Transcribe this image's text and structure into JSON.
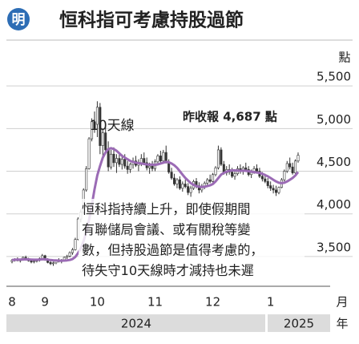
{
  "logo": "明",
  "chart_data": {
    "type": "candlestick",
    "title": "恒科指可考慮持股過節",
    "y_unit": "點",
    "x_unit": "月",
    "year_unit": "年",
    "years": [
      "2024",
      "2025"
    ],
    "annotation": "昨收報 4,687 點",
    "note": [
      "恒科指持續上升，即使假期間",
      "有聯儲局會議、或有關稅等變",
      "數，但持股過節是值得考慮的，",
      "待失守10天線時才減持也未遲"
    ],
    "categories": [
      "8",
      null,
      null,
      null,
      null,
      null,
      null,
      null,
      null,
      null,
      null,
      null,
      "9",
      null,
      null,
      null,
      null,
      null,
      null,
      null,
      null,
      null,
      null,
      null,
      null,
      null,
      null,
      null,
      null,
      null,
      null,
      "10",
      null,
      null,
      null,
      null,
      null,
      null,
      null,
      null,
      null,
      null,
      null,
      null,
      null,
      null,
      null,
      null,
      null,
      null,
      null,
      null,
      "11",
      null,
      null,
      null,
      null,
      null,
      null,
      null,
      null,
      null,
      null,
      null,
      null,
      null,
      null,
      null,
      null,
      null,
      null,
      null,
      null,
      "12",
      null,
      null,
      null,
      null,
      null,
      null,
      null,
      null,
      null,
      null,
      null,
      null,
      null,
      null,
      null,
      null,
      null,
      null,
      null,
      null,
      "1",
      null,
      null,
      null,
      null,
      null,
      null,
      null,
      null,
      null,
      null
    ],
    "open": [
      3440,
      3455,
      3470,
      3450,
      3465,
      3490,
      3470,
      3450,
      3435,
      3445,
      3460,
      3475,
      3510,
      3460,
      3430,
      3415,
      3425,
      3450,
      3440,
      3460,
      3490,
      3505,
      3545,
      3580,
      3700,
      3940,
      4020,
      4280,
      4530,
      4880,
      5080,
      5050,
      5250,
      4800,
      4950,
      4750,
      4550,
      4700,
      4600,
      4650,
      4580,
      4640,
      4560,
      4520,
      4580,
      4620,
      4570,
      4600,
      4650,
      4600,
      4540,
      4560,
      4530,
      4610,
      4680,
      4620,
      4720,
      4600,
      4490,
      4420,
      4350,
      4400,
      4300,
      4350,
      4320,
      4250,
      4300,
      4380,
      4330,
      4280,
      4320,
      4360,
      4400,
      4380,
      4460,
      4540,
      4750,
      4580,
      4480,
      4520,
      4490,
      4440,
      4470,
      4530,
      4500,
      4540,
      4520,
      4460,
      4500,
      4530,
      4500,
      4440,
      4410,
      4380,
      4330,
      4300,
      4280,
      4250,
      4310,
      4400,
      4500,
      4590,
      4550,
      4480,
      4620
    ],
    "high": [
      3470,
      3480,
      3490,
      3475,
      3500,
      3510,
      3485,
      3470,
      3460,
      3475,
      3490,
      3530,
      3520,
      3480,
      3450,
      3440,
      3460,
      3480,
      3470,
      3500,
      3520,
      3560,
      3600,
      3720,
      3960,
      4050,
      4300,
      4560,
      4900,
      5120,
      5200,
      5320,
      5300,
      5000,
      5050,
      4850,
      4750,
      4780,
      4700,
      4720,
      4680,
      4700,
      4620,
      4600,
      4660,
      4680,
      4640,
      4700,
      4720,
      4660,
      4600,
      4620,
      4640,
      4700,
      4740,
      4750,
      4800,
      4640,
      4540,
      4470,
      4420,
      4440,
      4380,
      4400,
      4360,
      4330,
      4400,
      4420,
      4370,
      4350,
      4380,
      4420,
      4460,
      4480,
      4560,
      4800,
      4780,
      4620,
      4560,
      4580,
      4540,
      4500,
      4560,
      4580,
      4560,
      4600,
      4560,
      4520,
      4560,
      4580,
      4540,
      4490,
      4470,
      4420,
      4380,
      4340,
      4330,
      4320,
      4420,
      4520,
      4620,
      4660,
      4600,
      4640,
      4720
    ],
    "low": [
      3420,
      3440,
      3445,
      3430,
      3450,
      3460,
      3440,
      3420,
      3420,
      3430,
      3440,
      3460,
      3450,
      3420,
      3400,
      3390,
      3410,
      3430,
      3420,
      3440,
      3470,
      3490,
      3520,
      3570,
      3690,
      3900,
      4000,
      4260,
      4520,
      4850,
      4950,
      4900,
      4700,
      4650,
      4700,
      4500,
      4520,
      4550,
      4480,
      4550,
      4520,
      4530,
      4470,
      4480,
      4530,
      4550,
      4500,
      4560,
      4580,
      4510,
      4470,
      4500,
      4500,
      4570,
      4600,
      4600,
      4590,
      4470,
      4400,
      4330,
      4300,
      4280,
      4260,
      4300,
      4220,
      4200,
      4280,
      4300,
      4240,
      4250,
      4290,
      4330,
      4360,
      4370,
      4440,
      4520,
      4560,
      4460,
      4450,
      4460,
      4420,
      4400,
      4450,
      4470,
      4460,
      4500,
      4440,
      4420,
      4470,
      4480,
      4420,
      4380,
      4360,
      4300,
      4270,
      4240,
      4210,
      4230,
      4300,
      4380,
      4480,
      4520,
      4460,
      4470,
      4600
    ],
    "close": [
      3455,
      3470,
      3450,
      3465,
      3490,
      3470,
      3450,
      3435,
      3445,
      3460,
      3475,
      3510,
      3460,
      3430,
      3415,
      3425,
      3450,
      3440,
      3460,
      3490,
      3505,
      3545,
      3580,
      3700,
      3940,
      4020,
      4280,
      4530,
      4880,
      5080,
      5000,
      5250,
      4800,
      4950,
      4750,
      4550,
      4700,
      4600,
      4650,
      4580,
      4640,
      4560,
      4520,
      4580,
      4620,
      4570,
      4600,
      4650,
      4600,
      4540,
      4560,
      4530,
      4610,
      4680,
      4620,
      4720,
      4600,
      4490,
      4420,
      4350,
      4400,
      4300,
      4350,
      4320,
      4250,
      4300,
      4380,
      4330,
      4280,
      4320,
      4360,
      4400,
      4380,
      4460,
      4540,
      4750,
      4580,
      4480,
      4520,
      4490,
      4440,
      4470,
      4530,
      4500,
      4540,
      4520,
      4460,
      4500,
      4530,
      4500,
      4440,
      4410,
      4380,
      4330,
      4300,
      4280,
      4250,
      4310,
      4400,
      4500,
      4590,
      4550,
      4480,
      4620,
      4687
    ],
    "up_color": "#ffffff",
    "down_color": "#333333",
    "series": [
      {
        "name": "10天線",
        "color": "#9b6bb5",
        "values": [
          3460,
          3462,
          3463,
          3464,
          3466,
          3467,
          3466,
          3464,
          3462,
          3462,
          3464,
          3468,
          3467,
          3463,
          3459,
          3456,
          3454,
          3452,
          3451,
          3452,
          3455,
          3460,
          3470,
          3495,
          3540,
          3595,
          3680,
          3790,
          3930,
          4100,
          4290,
          4450,
          4560,
          4660,
          4720,
          4760,
          4770,
          4760,
          4740,
          4710,
          4680,
          4660,
          4640,
          4620,
          4610,
          4600,
          4595,
          4590,
          4585,
          4580,
          4578,
          4576,
          4575,
          4580,
          4590,
          4600,
          4610,
          4605,
          4590,
          4570,
          4540,
          4500,
          4460,
          4420,
          4390,
          4360,
          4340,
          4325,
          4318,
          4315,
          4318,
          4325,
          4335,
          4350,
          4380,
          4420,
          4460,
          4480,
          4495,
          4505,
          4510,
          4510,
          4508,
          4506,
          4505,
          4505,
          4500,
          4495,
          4490,
          4485,
          4480,
          4470,
          4455,
          4440,
          4420,
          4400,
          4380,
          4365,
          4360,
          4365,
          4380,
          4400,
          4420,
          4450,
          4490
        ]
      }
    ],
    "ylim": [
      3170,
      5680
    ],
    "yticks": [
      {
        "value": 3500,
        "label": "3,500"
      },
      {
        "value": 4000,
        "label": "4,000"
      },
      {
        "value": 4500,
        "label": "4,500"
      },
      {
        "value": 5000,
        "label": "5,000"
      },
      {
        "value": 5500,
        "label": "5,500"
      }
    ],
    "grid": true
  }
}
